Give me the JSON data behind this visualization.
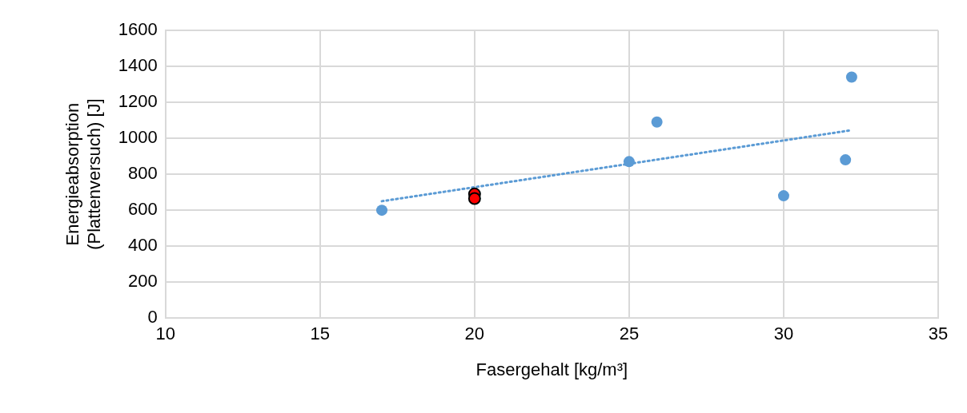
{
  "chart_data": {
    "type": "scatter",
    "xlabel": "Fasergehalt [kg/m³]",
    "ylabel": "Energieabsorption\n(Plattenversuch) [J]",
    "xlim": [
      10,
      35
    ],
    "xticks": [
      10,
      15,
      20,
      25,
      30,
      35
    ],
    "ylim": [
      0,
      1600
    ],
    "yticks": [
      0,
      200,
      400,
      600,
      800,
      1000,
      1200,
      1400,
      1600
    ],
    "grid": true,
    "legend": false,
    "marker": "circle",
    "series": [
      {
        "color": "#5b9bd5",
        "x": [
          17,
          25,
          25.9,
          30,
          32,
          32.2
        ],
        "values": [
          600,
          870,
          1090,
          680,
          880,
          1340
        ]
      },
      {
        "type": "line",
        "line_style": "dotted",
        "marker": "none",
        "color": "#5b9bd5",
        "x": [
          17,
          32.2
        ],
        "values": [
          650,
          1045
        ]
      },
      {
        "color": "#ff0000",
        "x": [
          20,
          20
        ],
        "values": [
          690,
          665
        ]
      }
    ]
  }
}
